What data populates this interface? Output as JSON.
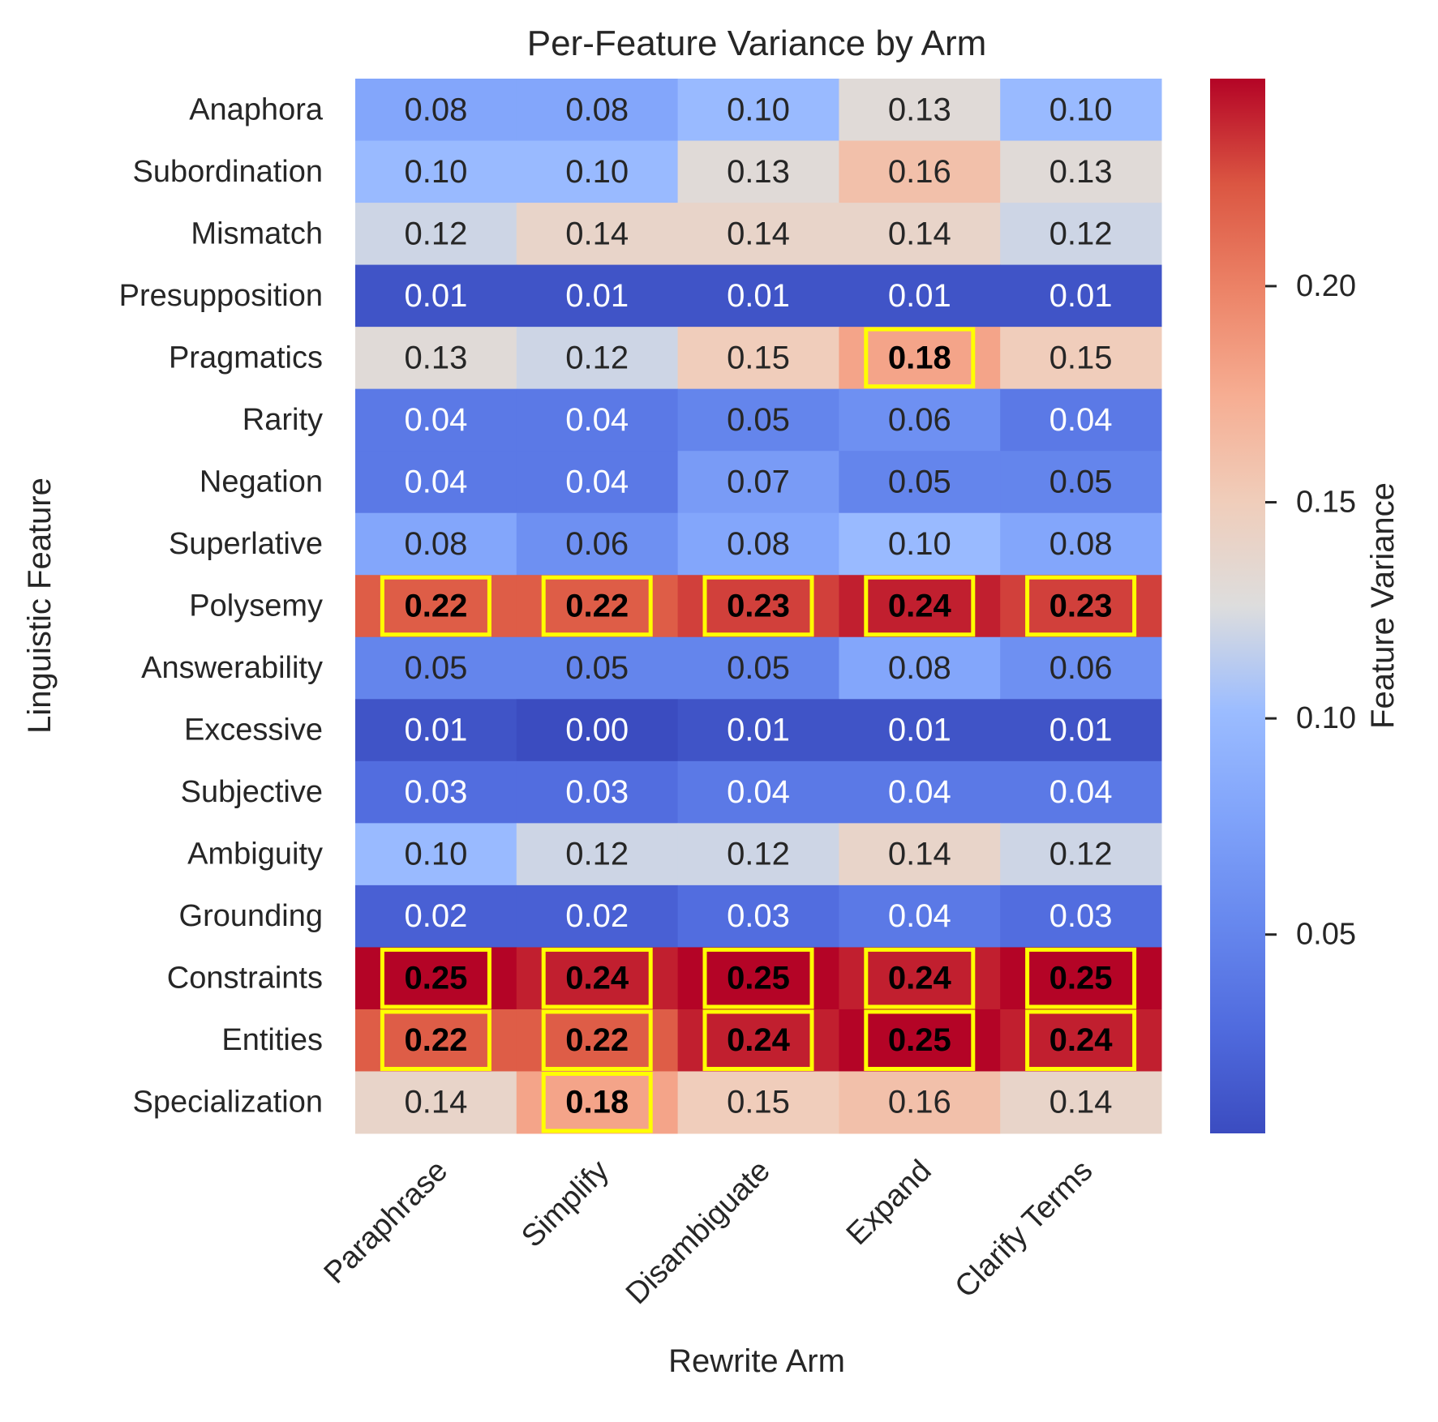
{
  "chart_data": {
    "type": "heatmap",
    "title": "Per-Feature Variance by Arm",
    "xlabel": "Rewrite Arm",
    "ylabel": "Linguistic Feature",
    "colorbar_label": "Feature Variance",
    "colorbar_range": [
      0.004,
      0.248
    ],
    "colorbar_ticks": [
      "0.05",
      "0.10",
      "0.15",
      "0.20"
    ],
    "colormap": "coolwarm",
    "highlight_color": "#FFFF00",
    "columns": [
      "Paraphrase",
      "Simplify",
      "Disambiguate",
      "Expand",
      "Clarify Terms"
    ],
    "rows": [
      "Anaphora",
      "Subordination",
      "Mismatch",
      "Presupposition",
      "Pragmatics",
      "Rarity",
      "Negation",
      "Superlative",
      "Polysemy",
      "Answerability",
      "Excessive",
      "Subjective",
      "Ambiguity",
      "Grounding",
      "Constraints",
      "Entities",
      "Specialization"
    ],
    "values": [
      [
        0.08,
        0.08,
        0.1,
        0.13,
        0.1
      ],
      [
        0.1,
        0.1,
        0.13,
        0.16,
        0.13
      ],
      [
        0.12,
        0.14,
        0.14,
        0.14,
        0.12
      ],
      [
        0.01,
        0.01,
        0.01,
        0.01,
        0.01
      ],
      [
        0.13,
        0.12,
        0.15,
        0.18,
        0.15
      ],
      [
        0.04,
        0.04,
        0.05,
        0.06,
        0.04
      ],
      [
        0.04,
        0.04,
        0.07,
        0.05,
        0.05
      ],
      [
        0.08,
        0.06,
        0.08,
        0.1,
        0.08
      ],
      [
        0.22,
        0.22,
        0.23,
        0.24,
        0.23
      ],
      [
        0.05,
        0.05,
        0.05,
        0.08,
        0.06
      ],
      [
        0.01,
        0.0,
        0.01,
        0.01,
        0.01
      ],
      [
        0.03,
        0.03,
        0.04,
        0.04,
        0.04
      ],
      [
        0.1,
        0.12,
        0.12,
        0.14,
        0.12
      ],
      [
        0.02,
        0.02,
        0.03,
        0.04,
        0.03
      ],
      [
        0.25,
        0.24,
        0.25,
        0.24,
        0.25
      ],
      [
        0.22,
        0.22,
        0.24,
        0.25,
        0.24
      ],
      [
        0.14,
        0.18,
        0.15,
        0.16,
        0.14
      ]
    ],
    "highlighted": [
      [
        4,
        3
      ],
      [
        8,
        0
      ],
      [
        8,
        1
      ],
      [
        8,
        2
      ],
      [
        8,
        3
      ],
      [
        8,
        4
      ],
      [
        14,
        0
      ],
      [
        14,
        1
      ],
      [
        14,
        2
      ],
      [
        14,
        3
      ],
      [
        14,
        4
      ],
      [
        15,
        0
      ],
      [
        15,
        1
      ],
      [
        15,
        2
      ],
      [
        15,
        3
      ],
      [
        15,
        4
      ],
      [
        16,
        1
      ]
    ]
  }
}
